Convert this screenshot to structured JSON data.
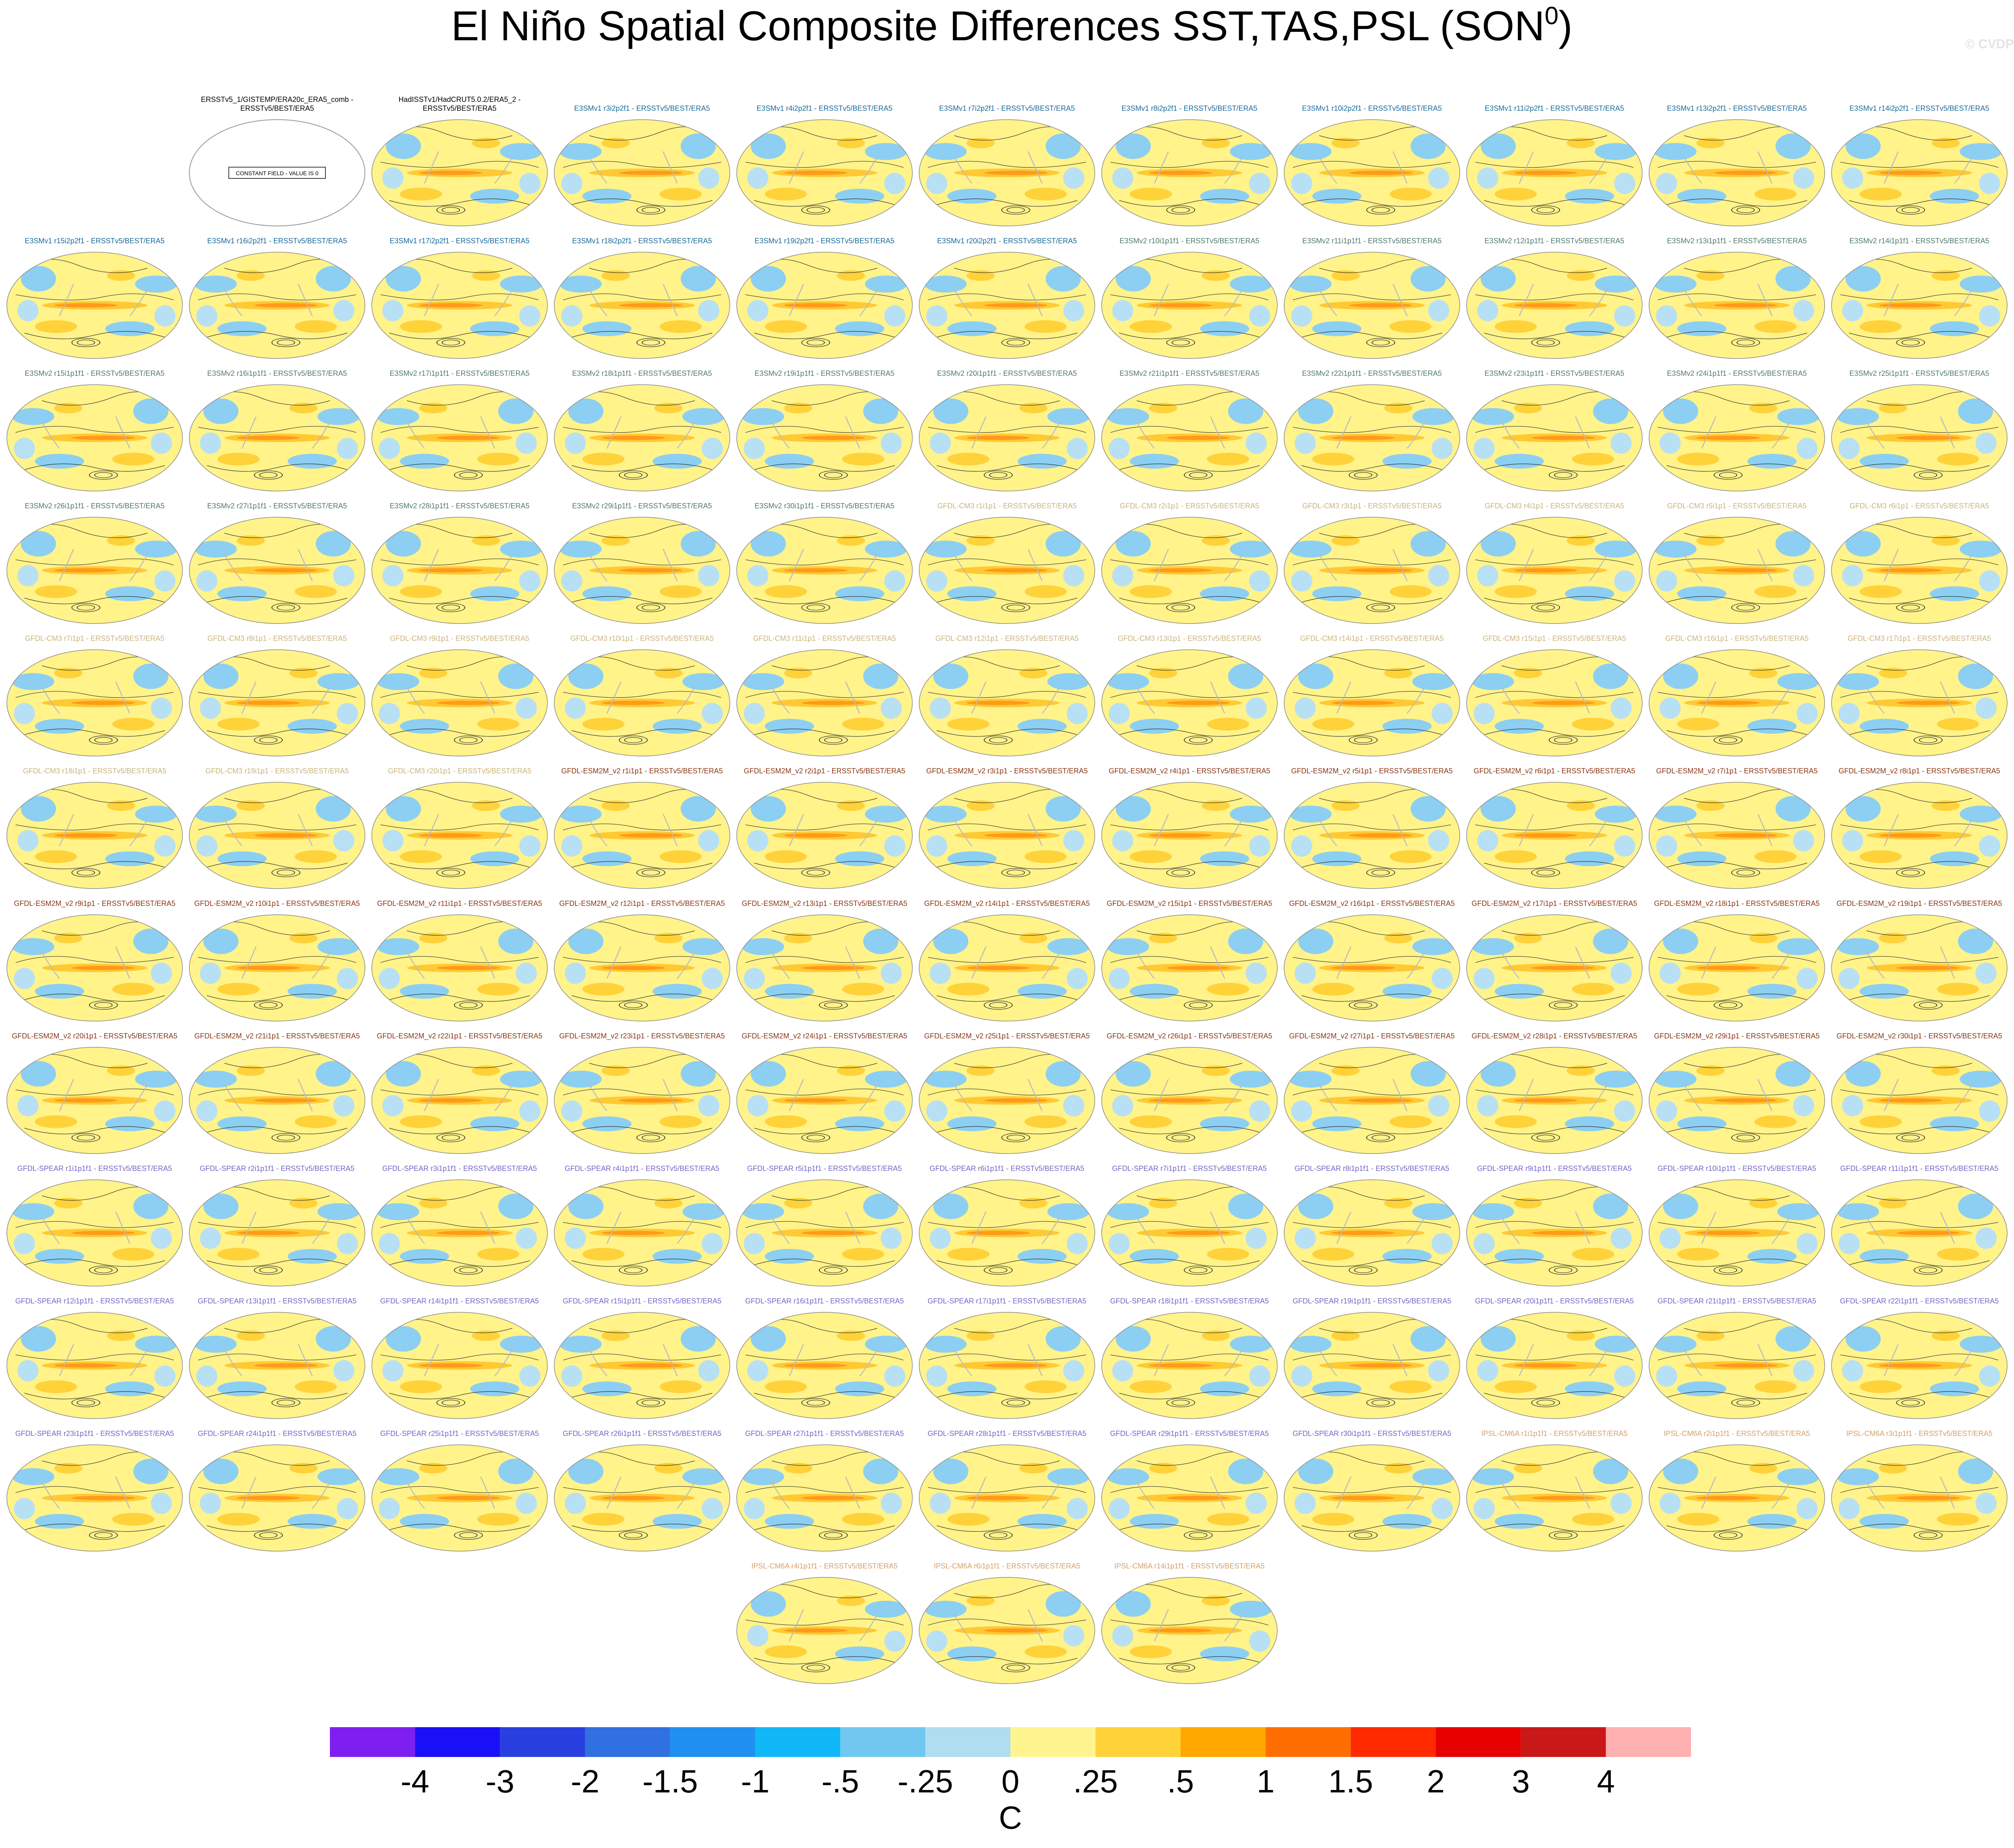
{
  "header": {
    "title": "El Niño Spatial Composite Differences SST,TAS,PSL (SON",
    "title_superscript": "0",
    "title_end": ")",
    "watermark": "© CVDP"
  },
  "panels": [
    [
      {
        "title_lines": [
          "ERSSTv5_1/GISTEMP/ERA20c_ERA5_comb -",
          "ERSSTv5/BEST/ERA5"
        ],
        "color": "#000000",
        "note": "CONSTANT FIELD - VALUE IS 0"
      },
      {
        "title_lines": [
          "HadISSTv1/HadCRUT5.0.2/ERA5_2 -",
          "ERSSTv5/BEST/ERA5"
        ],
        "color": "#000000"
      },
      {
        "title": "E3SMv1 r3i2p2f1 - ERSSTv5/BEST/ERA5",
        "color": "#1a6a9a"
      },
      {
        "title": "E3SMv1 r4i2p2f1 - ERSSTv5/BEST/ERA5",
        "color": "#1a6a9a"
      },
      {
        "title": "E3SMv1 r7i2p2f1 - ERSSTv5/BEST/ERA5",
        "color": "#1a6a9a"
      },
      {
        "title": "E3SMv1 r8i2p2f1 - ERSSTv5/BEST/ERA5",
        "color": "#1a6a9a"
      },
      {
        "title": "E3SMv1 r10i2p2f1 - ERSSTv5/BEST/ERA5",
        "color": "#1a6a9a"
      },
      {
        "title": "E3SMv1 r11i2p2f1 - ERSSTv5/BEST/ERA5",
        "color": "#1a6a9a"
      },
      {
        "title": "E3SMv1 r13i2p2f1 - ERSSTv5/BEST/ERA5",
        "color": "#1a6a9a"
      },
      {
        "title": "E3SMv1 r14i2p2f1 - ERSSTv5/BEST/ERA5",
        "color": "#1a6a9a"
      }
    ],
    [
      {
        "title": "E3SMv1 r15i2p2f1 - ERSSTv5/BEST/ERA5",
        "color": "#1a6a9a"
      },
      {
        "title": "E3SMv1 r16i2p2f1 - ERSSTv5/BEST/ERA5",
        "color": "#1a6a9a"
      },
      {
        "title": "E3SMv1 r17i2p2f1 - ERSSTv5/BEST/ERA5",
        "color": "#1a6a9a"
      },
      {
        "title": "E3SMv1 r18i2p2f1 - ERSSTv5/BEST/ERA5",
        "color": "#1a6a9a"
      },
      {
        "title": "E3SMv1 r19i2p2f1 - ERSSTv5/BEST/ERA5",
        "color": "#1a6a9a"
      },
      {
        "title": "E3SMv1 r20i2p2f1 - ERSSTv5/BEST/ERA5",
        "color": "#1a6a9a"
      },
      {
        "title": "E3SMv2 r10i1p1f1 - ERSSTv5/BEST/ERA5",
        "color": "#4f7a6c"
      },
      {
        "title": "E3SMv2 r11i1p1f1 - ERSSTv5/BEST/ERA5",
        "color": "#4f7a6c"
      },
      {
        "title": "E3SMv2 r12i1p1f1 - ERSSTv5/BEST/ERA5",
        "color": "#4f7a6c"
      },
      {
        "title": "E3SMv2 r13i1p1f1 - ERSSTv5/BEST/ERA5",
        "color": "#4f7a6c"
      },
      {
        "title": "E3SMv2 r14i1p1f1 - ERSSTv5/BEST/ERA5",
        "color": "#4f7a6c"
      }
    ],
    [
      {
        "title": "E3SMv2 r15i1p1f1 - ERSSTv5/BEST/ERA5",
        "color": "#4f7a6c"
      },
      {
        "title": "E3SMv2 r16i1p1f1 - ERSSTv5/BEST/ERA5",
        "color": "#4f7a6c"
      },
      {
        "title": "E3SMv2 r17i1p1f1 - ERSSTv5/BEST/ERA5",
        "color": "#4f7a6c"
      },
      {
        "title": "E3SMv2 r18i1p1f1 - ERSSTv5/BEST/ERA5",
        "color": "#4f7a6c"
      },
      {
        "title": "E3SMv2 r19i1p1f1 - ERSSTv5/BEST/ERA5",
        "color": "#4f7a6c"
      },
      {
        "title": "E3SMv2 r20i1p1f1 - ERSSTv5/BEST/ERA5",
        "color": "#4f7a6c"
      },
      {
        "title": "E3SMv2 r21i1p1f1 - ERSSTv5/BEST/ERA5",
        "color": "#4f7a6c"
      },
      {
        "title": "E3SMv2 r22i1p1f1 - ERSSTv5/BEST/ERA5",
        "color": "#4f7a6c"
      },
      {
        "title": "E3SMv2 r23i1p1f1 - ERSSTv5/BEST/ERA5",
        "color": "#4f7a6c"
      },
      {
        "title": "E3SMv2 r24i1p1f1 - ERSSTv5/BEST/ERA5",
        "color": "#4f7a6c"
      },
      {
        "title": "E3SMv2 r25i1p1f1 - ERSSTv5/BEST/ERA5",
        "color": "#4f7a6c"
      }
    ],
    [
      {
        "title": "E3SMv2 r26i1p1f1 - ERSSTv5/BEST/ERA5",
        "color": "#4f7a6c"
      },
      {
        "title": "E3SMv2 r27i1p1f1 - ERSSTv5/BEST/ERA5",
        "color": "#4f7a6c"
      },
      {
        "title": "E3SMv2 r28i1p1f1 - ERSSTv5/BEST/ERA5",
        "color": "#4f7a6c"
      },
      {
        "title": "E3SMv2 r29i1p1f1 - ERSSTv5/BEST/ERA5",
        "color": "#4f7a6c"
      },
      {
        "title": "E3SMv2 r30i1p1f1 - ERSSTv5/BEST/ERA5",
        "color": "#4f7a6c"
      },
      {
        "title": "GFDL-CM3 r1i1p1 - ERSSTv5/BEST/ERA5",
        "color": "#c8b47a"
      },
      {
        "title": "GFDL-CM3 r2i1p1 - ERSSTv5/BEST/ERA5",
        "color": "#c8b47a"
      },
      {
        "title": "GFDL-CM3 r3i1p1 - ERSSTv5/BEST/ERA5",
        "color": "#c8b47a"
      },
      {
        "title": "GFDL-CM3 r4i1p1 - ERSSTv5/BEST/ERA5",
        "color": "#c8b47a"
      },
      {
        "title": "GFDL-CM3 r5i1p1 - ERSSTv5/BEST/ERA5",
        "color": "#c8b47a"
      },
      {
        "title": "GFDL-CM3 r6i1p1 - ERSSTv5/BEST/ERA5",
        "color": "#c8b47a"
      }
    ],
    [
      {
        "title": "GFDL-CM3 r7i1p1 - ERSSTv5/BEST/ERA5",
        "color": "#c8b47a"
      },
      {
        "title": "GFDL-CM3 r8i1p1 - ERSSTv5/BEST/ERA5",
        "color": "#c8b47a"
      },
      {
        "title": "GFDL-CM3 r9i1p1 - ERSSTv5/BEST/ERA5",
        "color": "#c8b47a"
      },
      {
        "title": "GFDL-CM3 r10i1p1 - ERSSTv5/BEST/ERA5",
        "color": "#c8b47a"
      },
      {
        "title": "GFDL-CM3 r11i1p1 - ERSSTv5/BEST/ERA5",
        "color": "#c8b47a"
      },
      {
        "title": "GFDL-CM3 r12i1p1 - ERSSTv5/BEST/ERA5",
        "color": "#c8b47a"
      },
      {
        "title": "GFDL-CM3 r13i1p1 - ERSSTv5/BEST/ERA5",
        "color": "#c8b47a"
      },
      {
        "title": "GFDL-CM3 r14i1p1 - ERSSTv5/BEST/ERA5",
        "color": "#c8b47a"
      },
      {
        "title": "GFDL-CM3 r15i1p1 - ERSSTv5/BEST/ERA5",
        "color": "#c8b47a"
      },
      {
        "title": "GFDL-CM3 r16i1p1 - ERSSTv5/BEST/ERA5",
        "color": "#c8b47a"
      },
      {
        "title": "GFDL-CM3 r17i1p1 - ERSSTv5/BEST/ERA5",
        "color": "#c8b47a"
      }
    ],
    [
      {
        "title": "GFDL-CM3 r18i1p1 - ERSSTv5/BEST/ERA5",
        "color": "#c8b47a"
      },
      {
        "title": "GFDL-CM3 r19i1p1 - ERSSTv5/BEST/ERA5",
        "color": "#c8b47a"
      },
      {
        "title": "GFDL-CM3 r20i1p1 - ERSSTv5/BEST/ERA5",
        "color": "#c8b47a"
      },
      {
        "title": "GFDL-ESM2M_v2 r1i1p1 - ERSSTv5/BEST/ERA5",
        "color": "#8a3514"
      },
      {
        "title": "GFDL-ESM2M_v2 r2i1p1 - ERSSTv5/BEST/ERA5",
        "color": "#8a3514"
      },
      {
        "title": "GFDL-ESM2M_v2 r3i1p1 - ERSSTv5/BEST/ERA5",
        "color": "#8a3514"
      },
      {
        "title": "GFDL-ESM2M_v2 r4i1p1 - ERSSTv5/BEST/ERA5",
        "color": "#8a3514"
      },
      {
        "title": "GFDL-ESM2M_v2 r5i1p1 - ERSSTv5/BEST/ERA5",
        "color": "#8a3514"
      },
      {
        "title": "GFDL-ESM2M_v2 r6i1p1 - ERSSTv5/BEST/ERA5",
        "color": "#8a3514"
      },
      {
        "title": "GFDL-ESM2M_v2 r7i1p1 - ERSSTv5/BEST/ERA5",
        "color": "#8a3514"
      },
      {
        "title": "GFDL-ESM2M_v2 r8i1p1 - ERSSTv5/BEST/ERA5",
        "color": "#8a3514"
      }
    ],
    [
      {
        "title": "GFDL-ESM2M_v2 r9i1p1 - ERSSTv5/BEST/ERA5",
        "color": "#8a3514"
      },
      {
        "title": "GFDL-ESM2M_v2 r10i1p1 - ERSSTv5/BEST/ERA5",
        "color": "#8a3514"
      },
      {
        "title": "GFDL-ESM2M_v2 r11i1p1 - ERSSTv5/BEST/ERA5",
        "color": "#8a3514"
      },
      {
        "title": "GFDL-ESM2M_v2 r12i1p1 - ERSSTv5/BEST/ERA5",
        "color": "#8a3514"
      },
      {
        "title": "GFDL-ESM2M_v2 r13i1p1 - ERSSTv5/BEST/ERA5",
        "color": "#8a3514"
      },
      {
        "title": "GFDL-ESM2M_v2 r14i1p1 - ERSSTv5/BEST/ERA5",
        "color": "#8a3514"
      },
      {
        "title": "GFDL-ESM2M_v2 r15i1p1 - ERSSTv5/BEST/ERA5",
        "color": "#8a3514"
      },
      {
        "title": "GFDL-ESM2M_v2 r16i1p1 - ERSSTv5/BEST/ERA5",
        "color": "#8a3514"
      },
      {
        "title": "GFDL-ESM2M_v2 r17i1p1 - ERSSTv5/BEST/ERA5",
        "color": "#8a3514"
      },
      {
        "title": "GFDL-ESM2M_v2 r18i1p1 - ERSSTv5/BEST/ERA5",
        "color": "#8a3514"
      },
      {
        "title": "GFDL-ESM2M_v2 r19i1p1 - ERSSTv5/BEST/ERA5",
        "color": "#8a3514"
      }
    ],
    [
      {
        "title": "GFDL-ESM2M_v2 r20i1p1 - ERSSTv5/BEST/ERA5",
        "color": "#8a3514"
      },
      {
        "title": "GFDL-ESM2M_v2 r21i1p1 - ERSSTv5/BEST/ERA5",
        "color": "#8a3514"
      },
      {
        "title": "GFDL-ESM2M_v2 r22i1p1 - ERSSTv5/BEST/ERA5",
        "color": "#8a3514"
      },
      {
        "title": "GFDL-ESM2M_v2 r23i1p1 - ERSSTv5/BEST/ERA5",
        "color": "#8a3514"
      },
      {
        "title": "GFDL-ESM2M_v2 r24i1p1 - ERSSTv5/BEST/ERA5",
        "color": "#8a3514"
      },
      {
        "title": "GFDL-ESM2M_v2 r25i1p1 - ERSSTv5/BEST/ERA5",
        "color": "#8a3514"
      },
      {
        "title": "GFDL-ESM2M_v2 r26i1p1 - ERSSTv5/BEST/ERA5",
        "color": "#8a3514"
      },
      {
        "title": "GFDL-ESM2M_v2 r27i1p1 - ERSSTv5/BEST/ERA5",
        "color": "#8a3514"
      },
      {
        "title": "GFDL-ESM2M_v2 r28i1p1 - ERSSTv5/BEST/ERA5",
        "color": "#8a3514"
      },
      {
        "title": "GFDL-ESM2M_v2 r29i1p1 - ERSSTv5/BEST/ERA5",
        "color": "#8a3514"
      },
      {
        "title": "GFDL-ESM2M_v2 r30i1p1 - ERSSTv5/BEST/ERA5",
        "color": "#8a3514"
      }
    ],
    [
      {
        "title": "GFDL-SPEAR r1i1p1f1 - ERSSTv5/BEST/ERA5",
        "color": "#7664c4"
      },
      {
        "title": "GFDL-SPEAR r2i1p1f1 - ERSSTv5/BEST/ERA5",
        "color": "#7664c4"
      },
      {
        "title": "GFDL-SPEAR r3i1p1f1 - ERSSTv5/BEST/ERA5",
        "color": "#7664c4"
      },
      {
        "title": "GFDL-SPEAR r4i1p1f1 - ERSSTv5/BEST/ERA5",
        "color": "#7664c4"
      },
      {
        "title": "GFDL-SPEAR r5i1p1f1 - ERSSTv5/BEST/ERA5",
        "color": "#7664c4"
      },
      {
        "title": "GFDL-SPEAR r6i1p1f1 - ERSSTv5/BEST/ERA5",
        "color": "#7664c4"
      },
      {
        "title": "GFDL-SPEAR r7i1p1f1 - ERSSTv5/BEST/ERA5",
        "color": "#7664c4"
      },
      {
        "title": "GFDL-SPEAR r8i1p1f1 - ERSSTv5/BEST/ERA5",
        "color": "#7664c4"
      },
      {
        "title": "GFDL-SPEAR r9i1p1f1 - ERSSTv5/BEST/ERA5",
        "color": "#7664c4"
      },
      {
        "title": "GFDL-SPEAR r10i1p1f1 - ERSSTv5/BEST/ERA5",
        "color": "#7664c4"
      },
      {
        "title": "GFDL-SPEAR r11i1p1f1 - ERSSTv5/BEST/ERA5",
        "color": "#7664c4"
      }
    ],
    [
      {
        "title": "GFDL-SPEAR r12i1p1f1 - ERSSTv5/BEST/ERA5",
        "color": "#7664c4"
      },
      {
        "title": "GFDL-SPEAR r13i1p1f1 - ERSSTv5/BEST/ERA5",
        "color": "#7664c4"
      },
      {
        "title": "GFDL-SPEAR r14i1p1f1 - ERSSTv5/BEST/ERA5",
        "color": "#7664c4"
      },
      {
        "title": "GFDL-SPEAR r15i1p1f1 - ERSSTv5/BEST/ERA5",
        "color": "#7664c4"
      },
      {
        "title": "GFDL-SPEAR r16i1p1f1 - ERSSTv5/BEST/ERA5",
        "color": "#7664c4"
      },
      {
        "title": "GFDL-SPEAR r17i1p1f1 - ERSSTv5/BEST/ERA5",
        "color": "#7664c4"
      },
      {
        "title": "GFDL-SPEAR r18i1p1f1 - ERSSTv5/BEST/ERA5",
        "color": "#7664c4"
      },
      {
        "title": "GFDL-SPEAR r19i1p1f1 - ERSSTv5/BEST/ERA5",
        "color": "#7664c4"
      },
      {
        "title": "GFDL-SPEAR r20i1p1f1 - ERSSTv5/BEST/ERA5",
        "color": "#7664c4"
      },
      {
        "title": "GFDL-SPEAR r21i1p1f1 - ERSSTv5/BEST/ERA5",
        "color": "#7664c4"
      },
      {
        "title": "GFDL-SPEAR r22i1p1f1 - ERSSTv5/BEST/ERA5",
        "color": "#7664c4"
      }
    ],
    [
      {
        "title": "GFDL-SPEAR r23i1p1f1 - ERSSTv5/BEST/ERA5",
        "color": "#7664c4"
      },
      {
        "title": "GFDL-SPEAR r24i1p1f1 - ERSSTv5/BEST/ERA5",
        "color": "#7664c4"
      },
      {
        "title": "GFDL-SPEAR r25i1p1f1 - ERSSTv5/BEST/ERA5",
        "color": "#7664c4"
      },
      {
        "title": "GFDL-SPEAR r26i1p1f1 - ERSSTv5/BEST/ERA5",
        "color": "#7664c4"
      },
      {
        "title": "GFDL-SPEAR r27i1p1f1 - ERSSTv5/BEST/ERA5",
        "color": "#7664c4"
      },
      {
        "title": "GFDL-SPEAR r28i1p1f1 - ERSSTv5/BEST/ERA5",
        "color": "#7664c4"
      },
      {
        "title": "GFDL-SPEAR r29i1p1f1 - ERSSTv5/BEST/ERA5",
        "color": "#7664c4"
      },
      {
        "title": "GFDL-SPEAR r30i1p1f1 - ERSSTv5/BEST/ERA5",
        "color": "#7664c4"
      },
      {
        "title": "IPSL-CM6A r1i1p1f1 - ERSSTv5/BEST/ERA5",
        "color": "#d4a06a"
      },
      {
        "title": "IPSL-CM6A r2i1p1f1 - ERSSTv5/BEST/ERA5",
        "color": "#d4a06a"
      },
      {
        "title": "IPSL-CM6A r3i1p1f1 - ERSSTv5/BEST/ERA5",
        "color": "#d4a06a"
      }
    ],
    [
      {
        "title": "IPSL-CM6A r4i1p1f1 - ERSSTv5/BEST/ERA5",
        "color": "#d4a06a"
      },
      {
        "title": "IPSL-CM6A r6i1p1f1 - ERSSTv5/BEST/ERA5",
        "color": "#d4a06a"
      },
      {
        "title": "IPSL-CM6A r14i1p1f1 - ERSSTv5/BEST/ERA5",
        "color": "#d4a06a"
      }
    ]
  ],
  "colorbar": {
    "colors": [
      "#7f1fef",
      "#1a10f8",
      "#2a3fe0",
      "#3070e0",
      "#2090f0",
      "#10b8f8",
      "#70c8f0",
      "#b0ddf0",
      "#fff590",
      "#ffd23a",
      "#ffa800",
      "#ff6e00",
      "#ff2a00",
      "#e60000",
      "#c81818",
      "#ffb0b0"
    ],
    "ticks": [
      -4,
      -3,
      -2,
      {
        "value": -1.5,
        "label": "-1.5"
      },
      -1,
      {
        "value": -0.5,
        "label": "-.5"
      },
      {
        "value": -0.25,
        "label": "-.25"
      },
      0,
      {
        "value": 0.25,
        "label": ".25"
      },
      {
        "value": 0.5,
        "label": ".5"
      },
      1,
      {
        "value": 1.5,
        "label": "1.5"
      },
      2,
      3,
      4
    ],
    "unit": "C"
  }
}
